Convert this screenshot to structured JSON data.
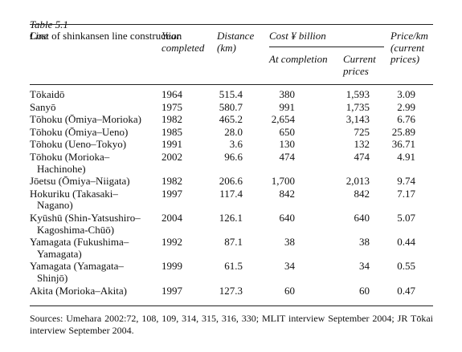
{
  "caption": {
    "label": "Table 5.1",
    "title": "Cost of shinkansen line construction"
  },
  "header": {
    "line": "Line",
    "year": "Year\ncompleted",
    "distance": "Distance\n(km)",
    "cost": "Cost ¥ billion",
    "at_completion": "At completion",
    "current": "Current\nprices",
    "price_km": "Price/km\n(current\nprices)"
  },
  "table": {
    "rows": [
      [
        "Tōkaidō",
        "1964",
        "515.4",
        "380",
        "1,593",
        "3.09"
      ],
      [
        "Sanyō",
        "1975",
        "580.7",
        "991",
        "1,735",
        "2.99"
      ],
      [
        "Tōhoku (Ōmiya–Morioka)",
        "1982",
        "465.2",
        "2,654",
        "3,143",
        "6.76"
      ],
      [
        "Tōhoku (Ōmiya–Ueno)",
        "1985",
        "28.0",
        "650",
        "725",
        "25.89"
      ],
      [
        "Tōhoku (Ueno–Tokyo)",
        "1991",
        "3.6",
        "130",
        "132",
        "36.71"
      ],
      [
        "Tōhoku (Morioka–\nHachinohe)",
        "2002",
        "96.6",
        "474",
        "474",
        "4.91"
      ],
      [
        "Jōetsu (Ōmiya–Niigata)",
        "1982",
        "206.6",
        "1,700",
        "2,013",
        "9.74"
      ],
      [
        "Hokuriku (Takasaki–\nNagano)",
        "1997",
        "117.4",
        "842",
        "842",
        "7.17"
      ],
      [
        "Kyūshū (Shin-Yatsushiro–\nKagoshima-Chūō)",
        "2004",
        "126.1",
        "640",
        "640",
        "5.07"
      ],
      [
        "Yamagata (Fukushima–\nYamagata)",
        "1992",
        "87.1",
        "38",
        "38",
        "0.44"
      ],
      [
        "Yamagata (Yamagata–\nShinjō)",
        "1999",
        "61.5",
        "34",
        "34",
        "0.55"
      ],
      [
        "Akita (Morioka–Akita)",
        "1997",
        "127.3",
        "60",
        "60",
        "0.47"
      ]
    ]
  },
  "sources": "Sources: Umehara 2002:72, 108, 109, 314, 315, 316, 330; MLIT interview September 2004; JR Tōkai interview September 2004."
}
